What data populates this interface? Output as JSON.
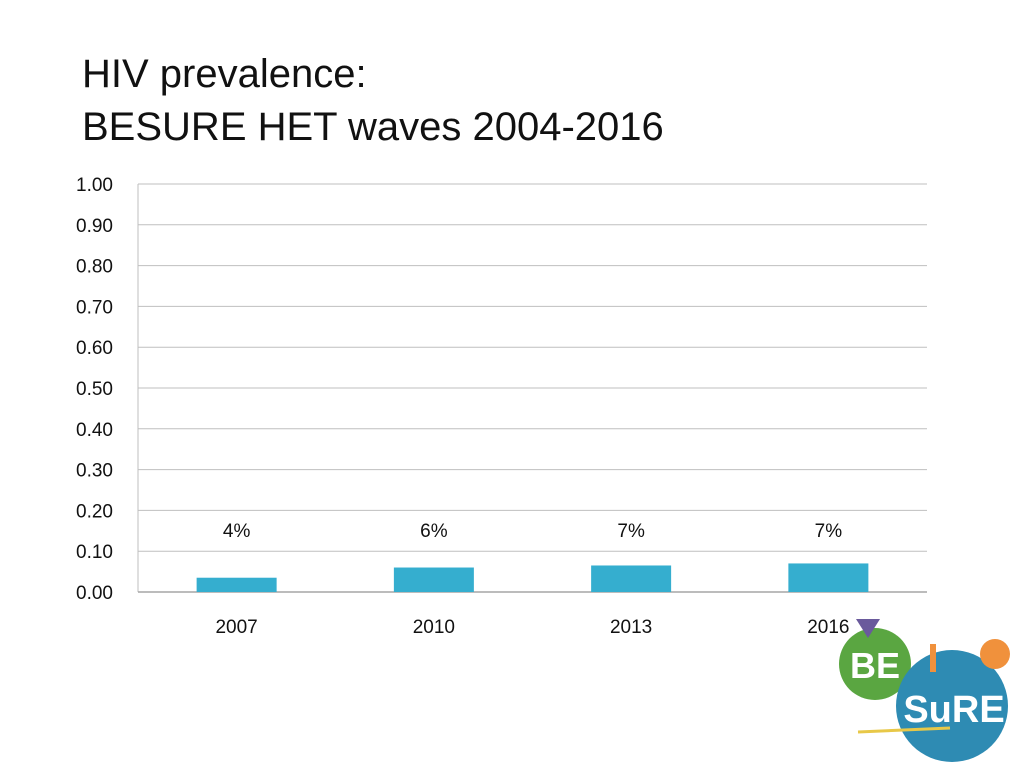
{
  "slide": {
    "title_line1": "HIV prevalence:",
    "title_line2": "BESURE HET waves 2004-2016"
  },
  "chart_data": {
    "type": "bar",
    "categories": [
      "2007",
      "2010",
      "2013",
      "2016"
    ],
    "values": [
      0.035,
      0.06,
      0.065,
      0.07
    ],
    "data_labels": [
      "4%",
      "6%",
      "7%",
      "7%"
    ],
    "ylim": [
      0,
      1.0
    ],
    "yticks": [
      "0.00",
      "0.10",
      "0.20",
      "0.30",
      "0.40",
      "0.50",
      "0.60",
      "0.70",
      "0.80",
      "0.90",
      "1.00"
    ],
    "grid": true,
    "legend": "none",
    "bar_color": "#35aecf",
    "grid_color": "#bfbfbf"
  },
  "logo": {
    "text_top": "BE",
    "text_bottom": "SuRE",
    "green": "#5aa641",
    "blue": "#2e8bb3",
    "orange": "#f0913c",
    "purple": "#6a5a9c",
    "yellow": "#e8c848"
  }
}
